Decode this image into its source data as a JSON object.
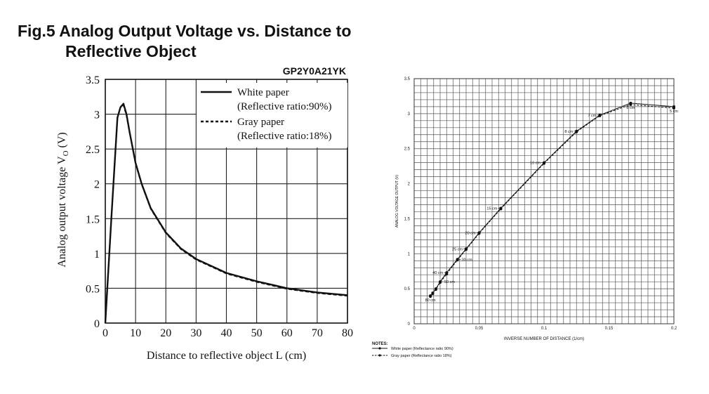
{
  "page": {
    "title_line1": "Fig.5 Analog Output Voltage vs. Distance to",
    "title_line2": "Reflective Object"
  },
  "chart_data": [
    {
      "type": "line",
      "model": "GP2Y0A21YK",
      "xlabel": "Distance to reflective object L (cm)",
      "ylabel": "Analog output voltage V",
      "ylabel_sub": "O",
      "ylabel_unit": " (V)",
      "xlim": [
        0,
        80
      ],
      "ylim": [
        0,
        3.5
      ],
      "x_ticks": [
        0,
        10,
        20,
        30,
        40,
        50,
        60,
        70,
        80
      ],
      "y_ticks": [
        0,
        0.5,
        1,
        1.5,
        2,
        2.5,
        3,
        3.5
      ],
      "y_tick_labels": [
        "0",
        "0.5",
        "1",
        "1.5",
        "2",
        "2.5",
        "3",
        "3.5"
      ],
      "grid": true,
      "legend_position": "top-right",
      "series": [
        {
          "name": "White paper",
          "note": "(Reflective ratio:90%)",
          "style": "solid",
          "x": [
            0,
            2,
            4,
            5,
            6,
            7,
            8,
            10,
            12,
            15,
            20,
            25,
            30,
            40,
            50,
            60,
            70,
            80
          ],
          "y": [
            0,
            1.5,
            2.95,
            3.1,
            3.15,
            3.0,
            2.75,
            2.3,
            2.0,
            1.65,
            1.3,
            1.07,
            0.92,
            0.72,
            0.6,
            0.5,
            0.44,
            0.4
          ]
        },
        {
          "name": "Gray paper",
          "note": "(Reflective ratio:18%)",
          "style": "dashed",
          "x": [
            0,
            2,
            4,
            5,
            6,
            7,
            8,
            10,
            12,
            15,
            20,
            25,
            30,
            40,
            50,
            60,
            70,
            80
          ],
          "y": [
            0,
            1.5,
            2.95,
            3.1,
            3.13,
            2.98,
            2.74,
            2.29,
            1.99,
            1.64,
            1.29,
            1.06,
            0.91,
            0.71,
            0.59,
            0.49,
            0.43,
            0.39
          ]
        }
      ]
    },
    {
      "type": "line",
      "xlabel": "INVERSE NUMBER OF DISTANCE (1/cm)",
      "ylabel": "ANALOG VOLTAGE OUTPUT (V)",
      "xlim": [
        0,
        0.2
      ],
      "ylim": [
        0,
        3.5
      ],
      "x_ticks": [
        0,
        0.05,
        0.1,
        0.15,
        0.2
      ],
      "x_tick_labels": [
        "0",
        "0.05",
        "0.1",
        "0.15",
        "0.2"
      ],
      "y_ticks": [
        0,
        0.5,
        1,
        1.5,
        2,
        2.5,
        3,
        3.5
      ],
      "y_tick_labels": [
        "0",
        "0.5",
        "1",
        "1.5",
        "2",
        "2.5",
        "3",
        "3.5"
      ],
      "grid": true,
      "notes_heading": "NOTES:",
      "series": [
        {
          "name": "White paper (Reflectance ratio 90%)",
          "style": "solid",
          "x": [
            0.0125,
            0.0143,
            0.0167,
            0.02,
            0.025,
            0.0333,
            0.04,
            0.05,
            0.0667,
            0.1,
            0.125,
            0.1429,
            0.1667,
            0.2
          ],
          "y": [
            0.4,
            0.44,
            0.5,
            0.6,
            0.73,
            0.92,
            1.07,
            1.3,
            1.65,
            2.3,
            2.75,
            2.98,
            3.15,
            3.1
          ]
        },
        {
          "name": "Gray paper (Reflectance ratio 18%)",
          "style": "dashed",
          "x": [
            0.0125,
            0.0143,
            0.0167,
            0.02,
            0.025,
            0.0333,
            0.04,
            0.05,
            0.0667,
            0.1,
            0.125,
            0.1429,
            0.1667,
            0.2
          ],
          "y": [
            0.39,
            0.43,
            0.49,
            0.59,
            0.71,
            0.91,
            1.06,
            1.29,
            1.64,
            2.29,
            2.74,
            2.97,
            3.13,
            3.08
          ]
        }
      ],
      "annotations": [
        {
          "label": "80 cm",
          "x": 0.0125,
          "y": 0.4,
          "pos": "below"
        },
        {
          "label": "50 cm",
          "x": 0.02,
          "y": 0.6,
          "pos": "right"
        },
        {
          "label": "40 cm",
          "x": 0.025,
          "y": 0.73,
          "pos": "left"
        },
        {
          "label": "30 cm",
          "x": 0.0333,
          "y": 0.92,
          "pos": "right"
        },
        {
          "label": "25 cm",
          "x": 0.04,
          "y": 1.07,
          "pos": "left"
        },
        {
          "label": "20 cm",
          "x": 0.05,
          "y": 1.3,
          "pos": "left"
        },
        {
          "label": "15 cm",
          "x": 0.0667,
          "y": 1.65,
          "pos": "left"
        },
        {
          "label": "10 cm",
          "x": 0.1,
          "y": 2.3,
          "pos": "left"
        },
        {
          "label": "8 cm",
          "x": 0.125,
          "y": 2.75,
          "pos": "left"
        },
        {
          "label": "7 cm",
          "x": 0.1429,
          "y": 2.98,
          "pos": "left"
        },
        {
          "label": "6 cm",
          "x": 0.1667,
          "y": 3.15,
          "pos": "below"
        },
        {
          "label": "5 cm",
          "x": 0.2,
          "y": 3.1,
          "pos": "below"
        }
      ]
    }
  ]
}
